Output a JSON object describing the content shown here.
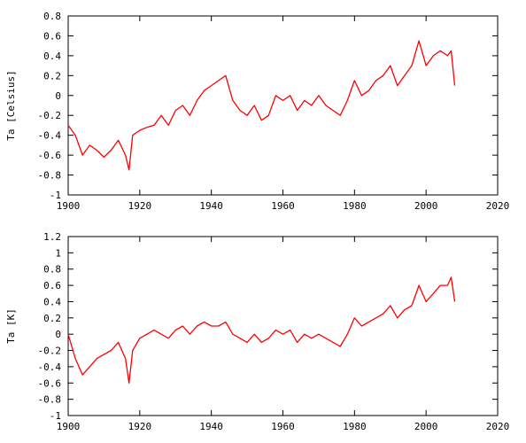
{
  "chart_data": [
    {
      "type": "line",
      "ylabel": "Ta [Celsius]",
      "xlabel": "",
      "title": "",
      "xlim": [
        1900,
        2020
      ],
      "ylim": [
        -1,
        0.8
      ],
      "x_ticks": [
        "1900",
        "1920",
        "1940",
        "1960",
        "1980",
        "2000",
        "2020"
      ],
      "y_ticks": [
        "-1",
        "-0.8",
        "-0.6",
        "-0.4",
        "-0.2",
        "0",
        "0.2",
        "0.4",
        "0.6",
        "0.8"
      ],
      "grid": false,
      "legend": "none",
      "series": [
        {
          "color": "#ff0000",
          "x": [
            1900,
            1902,
            1904,
            1906,
            1908,
            1910,
            1912,
            1914,
            1916,
            1917,
            1918,
            1920,
            1922,
            1924,
            1926,
            1928,
            1930,
            1932,
            1934,
            1936,
            1938,
            1940,
            1942,
            1944,
            1946,
            1948,
            1950,
            1952,
            1954,
            1956,
            1958,
            1960,
            1962,
            1964,
            1966,
            1968,
            1970,
            1972,
            1974,
            1976,
            1978,
            1980,
            1982,
            1984,
            1986,
            1988,
            1990,
            1992,
            1994,
            1996,
            1998,
            2000,
            2002,
            2004,
            2006,
            2007,
            2008
          ],
          "y": [
            -0.3,
            -0.4,
            -0.6,
            -0.5,
            -0.55,
            -0.62,
            -0.55,
            -0.45,
            -0.6,
            -0.75,
            -0.4,
            -0.35,
            -0.32,
            -0.3,
            -0.2,
            -0.3,
            -0.15,
            -0.1,
            -0.2,
            -0.05,
            0.05,
            0.1,
            0.15,
            0.2,
            -0.05,
            -0.15,
            -0.2,
            -0.1,
            -0.25,
            -0.2,
            0.0,
            -0.05,
            0.0,
            -0.15,
            -0.05,
            -0.1,
            0.0,
            -0.1,
            -0.15,
            -0.2,
            -0.05,
            0.15,
            0.0,
            0.05,
            0.15,
            0.2,
            0.3,
            0.1,
            0.2,
            0.3,
            0.55,
            0.3,
            0.4,
            0.45,
            0.4,
            0.45,
            0.1
          ]
        }
      ]
    },
    {
      "type": "line",
      "ylabel": "Ta [K]",
      "xlabel": "",
      "title": "",
      "xlim": [
        1900,
        2020
      ],
      "ylim": [
        -1,
        1.2
      ],
      "x_ticks": [
        "1900",
        "1920",
        "1940",
        "1960",
        "1980",
        "2000",
        "2020"
      ],
      "y_ticks": [
        "-1",
        "-0.8",
        "-0.6",
        "-0.4",
        "-0.2",
        "0",
        "0.2",
        "0.4",
        "0.6",
        "0.8",
        "1",
        "1.2"
      ],
      "grid": false,
      "legend": "none",
      "series": [
        {
          "color": "#ff0000",
          "x": [
            1900,
            1902,
            1904,
            1906,
            1908,
            1910,
            1912,
            1914,
            1916,
            1917,
            1918,
            1920,
            1922,
            1924,
            1926,
            1928,
            1930,
            1932,
            1934,
            1936,
            1938,
            1940,
            1942,
            1944,
            1946,
            1948,
            1950,
            1952,
            1954,
            1956,
            1958,
            1960,
            1962,
            1964,
            1966,
            1968,
            1970,
            1972,
            1974,
            1976,
            1978,
            1980,
            1982,
            1984,
            1986,
            1988,
            1990,
            1992,
            1994,
            1996,
            1998,
            2000,
            2002,
            2004,
            2006,
            2007,
            2008
          ],
          "y": [
            0.0,
            -0.3,
            -0.5,
            -0.4,
            -0.3,
            -0.25,
            -0.2,
            -0.1,
            -0.3,
            -0.6,
            -0.2,
            -0.05,
            0.0,
            0.05,
            0.0,
            -0.05,
            0.05,
            0.1,
            0.0,
            0.1,
            0.15,
            0.1,
            0.1,
            0.15,
            0.0,
            -0.05,
            -0.1,
            0.0,
            -0.1,
            -0.05,
            0.05,
            0.0,
            0.05,
            -0.1,
            0.0,
            -0.05,
            0.0,
            -0.05,
            -0.1,
            -0.15,
            0.0,
            0.2,
            0.1,
            0.15,
            0.2,
            0.25,
            0.35,
            0.2,
            0.3,
            0.35,
            0.6,
            0.4,
            0.5,
            0.6,
            0.6,
            0.7,
            0.4
          ]
        }
      ]
    }
  ]
}
